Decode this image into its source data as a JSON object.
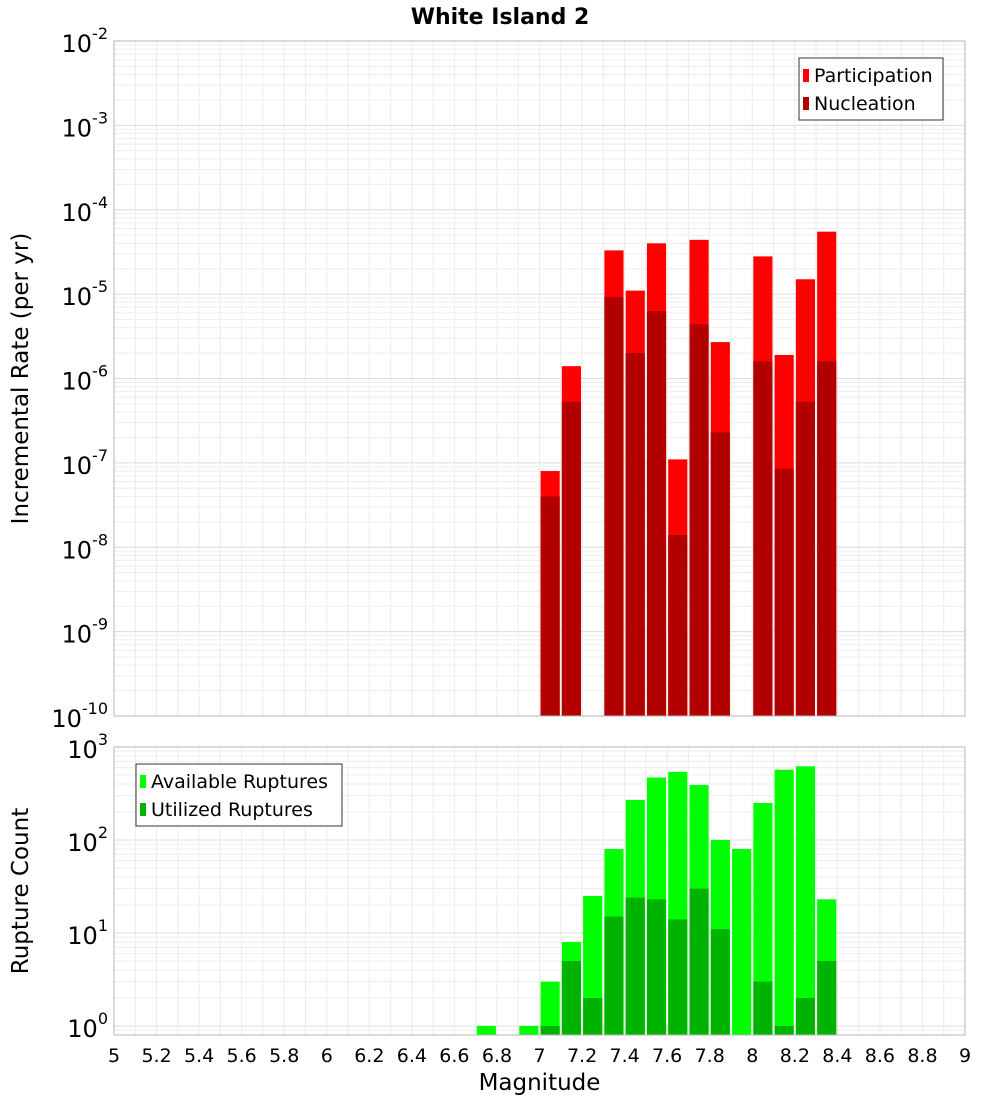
{
  "title": "White Island 2",
  "chart_data": [
    {
      "type": "bar",
      "title": "White Island 2",
      "xlabel": "",
      "ylabel": "Incremental Rate (per yr)",
      "yscale": "log",
      "ylim": [
        1e-10,
        0.01
      ],
      "xlim": [
        5,
        9
      ],
      "y_tick_labels": [
        {
          "base": "10",
          "exp": "-10"
        },
        {
          "base": "10",
          "exp": "-9"
        },
        {
          "base": "10",
          "exp": "-8"
        },
        {
          "base": "10",
          "exp": "-7"
        },
        {
          "base": "10",
          "exp": "-6"
        },
        {
          "base": "10",
          "exp": "-5"
        },
        {
          "base": "10",
          "exp": "-4"
        },
        {
          "base": "10",
          "exp": "-3"
        },
        {
          "base": "10",
          "exp": "-2"
        }
      ],
      "grid": true,
      "legend_position": "top-right",
      "bar_width": 0.09,
      "series": [
        {
          "name": "Participation",
          "color": "#ff0000",
          "points": [
            [
              7.05,
              8e-08
            ],
            [
              7.15,
              1.4e-06
            ],
            [
              7.35,
              3.3e-05
            ],
            [
              7.45,
              1.1e-05
            ],
            [
              7.55,
              4e-05
            ],
            [
              7.65,
              1.1e-07
            ],
            [
              7.75,
              4.4e-05
            ],
            [
              7.85,
              2.7e-06
            ],
            [
              8.05,
              2.8e-05
            ],
            [
              8.15,
              1.9e-06
            ],
            [
              8.25,
              1.5e-05
            ],
            [
              8.35,
              5.5e-05
            ]
          ]
        },
        {
          "name": "Nucleation",
          "color": "#b20000",
          "points": [
            [
              7.05,
              4e-08
            ],
            [
              7.15,
              5.3e-07
            ],
            [
              7.35,
              9.2e-06
            ],
            [
              7.45,
              2e-06
            ],
            [
              7.55,
              6.3e-06
            ],
            [
              7.65,
              1.4e-08
            ],
            [
              7.75,
              4.4e-06
            ],
            [
              7.85,
              2.3e-07
            ],
            [
              8.05,
              1.6e-06
            ],
            [
              8.15,
              8.5e-08
            ],
            [
              8.25,
              5.3e-07
            ],
            [
              8.35,
              1.6e-06
            ]
          ]
        }
      ]
    },
    {
      "type": "bar",
      "title": "",
      "xlabel": "Magnitude",
      "ylabel": "Rupture Count",
      "yscale": "log",
      "ylim": [
        0.8,
        1000
      ],
      "xlim": [
        5,
        9
      ],
      "y_tick_labels": [
        {
          "base": "10",
          "exp": "0",
          "value": 1
        },
        {
          "base": "10",
          "exp": "1",
          "value": 10
        },
        {
          "base": "10",
          "exp": "2",
          "value": 100
        },
        {
          "base": "10",
          "exp": "3",
          "value": 1000
        }
      ],
      "x_tick_labels": [
        "5",
        "5.2",
        "5.4",
        "5.6",
        "5.8",
        "6",
        "6.2",
        "6.4",
        "6.6",
        "6.8",
        "7",
        "7.2",
        "7.4",
        "7.6",
        "7.8",
        "8",
        "8.2",
        "8.4",
        "8.6",
        "8.8",
        "9"
      ],
      "grid": true,
      "legend_position": "top-left",
      "bar_width": 0.09,
      "series": [
        {
          "name": "Available Ruptures",
          "color": "#00ff00",
          "points": [
            [
              6.75,
              1
            ],
            [
              6.95,
              1
            ],
            [
              7.05,
              3
            ],
            [
              7.15,
              8
            ],
            [
              7.25,
              25
            ],
            [
              7.35,
              80
            ],
            [
              7.45,
              270
            ],
            [
              7.55,
              470
            ],
            [
              7.65,
              540
            ],
            [
              7.75,
              390
            ],
            [
              7.85,
              100
            ],
            [
              7.95,
              80
            ],
            [
              8.05,
              250
            ],
            [
              8.15,
              570
            ],
            [
              8.25,
              620
            ],
            [
              8.35,
              23
            ]
          ]
        },
        {
          "name": "Utilized Ruptures",
          "color": "#00b300",
          "points": [
            [
              7.05,
              1
            ],
            [
              7.15,
              5
            ],
            [
              7.25,
              2
            ],
            [
              7.35,
              15
            ],
            [
              7.45,
              24
            ],
            [
              7.55,
              23
            ],
            [
              7.65,
              14
            ],
            [
              7.75,
              30
            ],
            [
              7.85,
              11
            ],
            [
              8.05,
              3
            ],
            [
              8.15,
              1
            ],
            [
              8.25,
              2
            ],
            [
              8.35,
              5
            ]
          ]
        }
      ]
    }
  ]
}
